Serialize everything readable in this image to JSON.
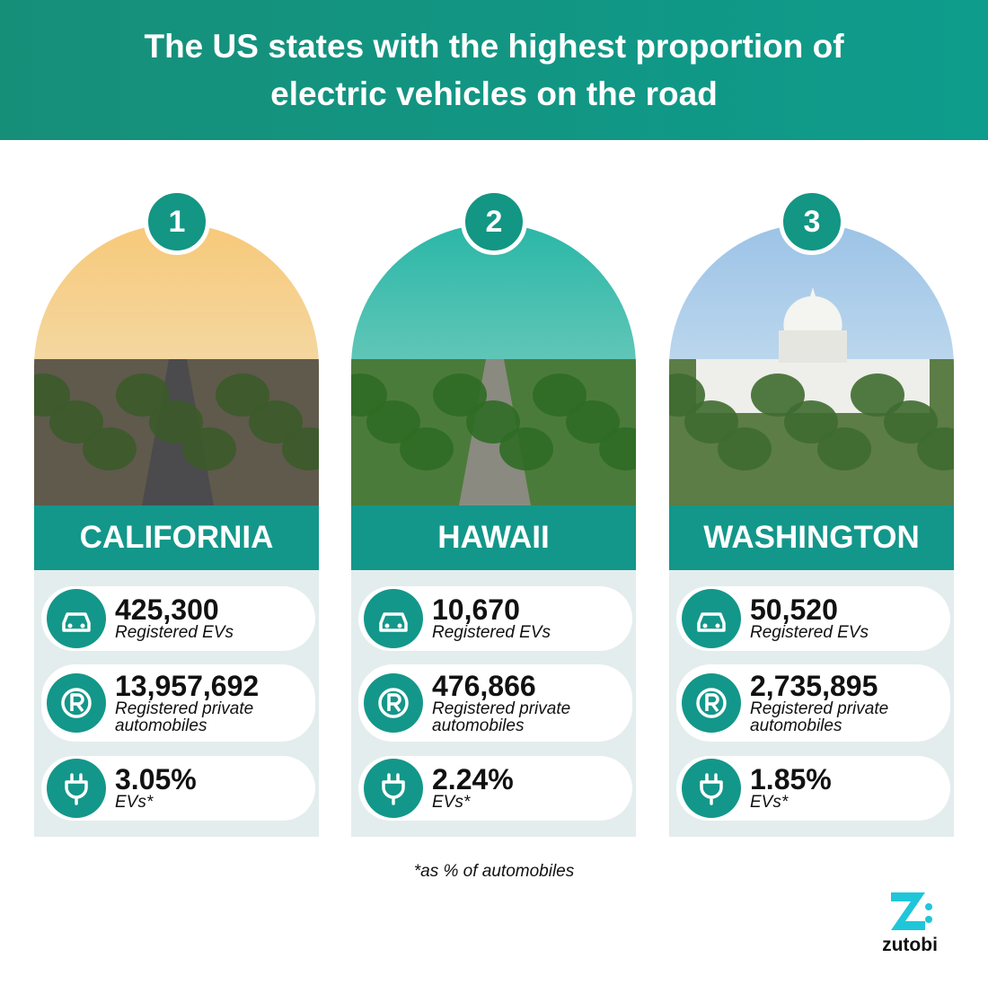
{
  "header": {
    "title": "The US states with the highest proportion of electric vehicles on the road"
  },
  "cards": [
    {
      "rank": "1",
      "state": "CALIFORNIA",
      "stats": [
        {
          "value": "425,300",
          "label": "Registered EVs"
        },
        {
          "value": "13,957,692",
          "label": "Registered private automobiles"
        },
        {
          "value": "3.05%",
          "label": "EVs*"
        }
      ]
    },
    {
      "rank": "2",
      "state": "HAWAII",
      "stats": [
        {
          "value": "10,670",
          "label": "Registered EVs"
        },
        {
          "value": "476,866",
          "label": "Registered private automobiles"
        },
        {
          "value": "2.24%",
          "label": "EVs*"
        }
      ]
    },
    {
      "rank": "3",
      "state": "WASHINGTON",
      "stats": [
        {
          "value": "50,520",
          "label": "Registered EVs"
        },
        {
          "value": "2,735,895",
          "label": "Registered private automobiles"
        },
        {
          "value": "1.85%",
          "label": "EVs*"
        }
      ]
    }
  ],
  "footnote": "*as % of automobiles",
  "logo": "zutobi"
}
